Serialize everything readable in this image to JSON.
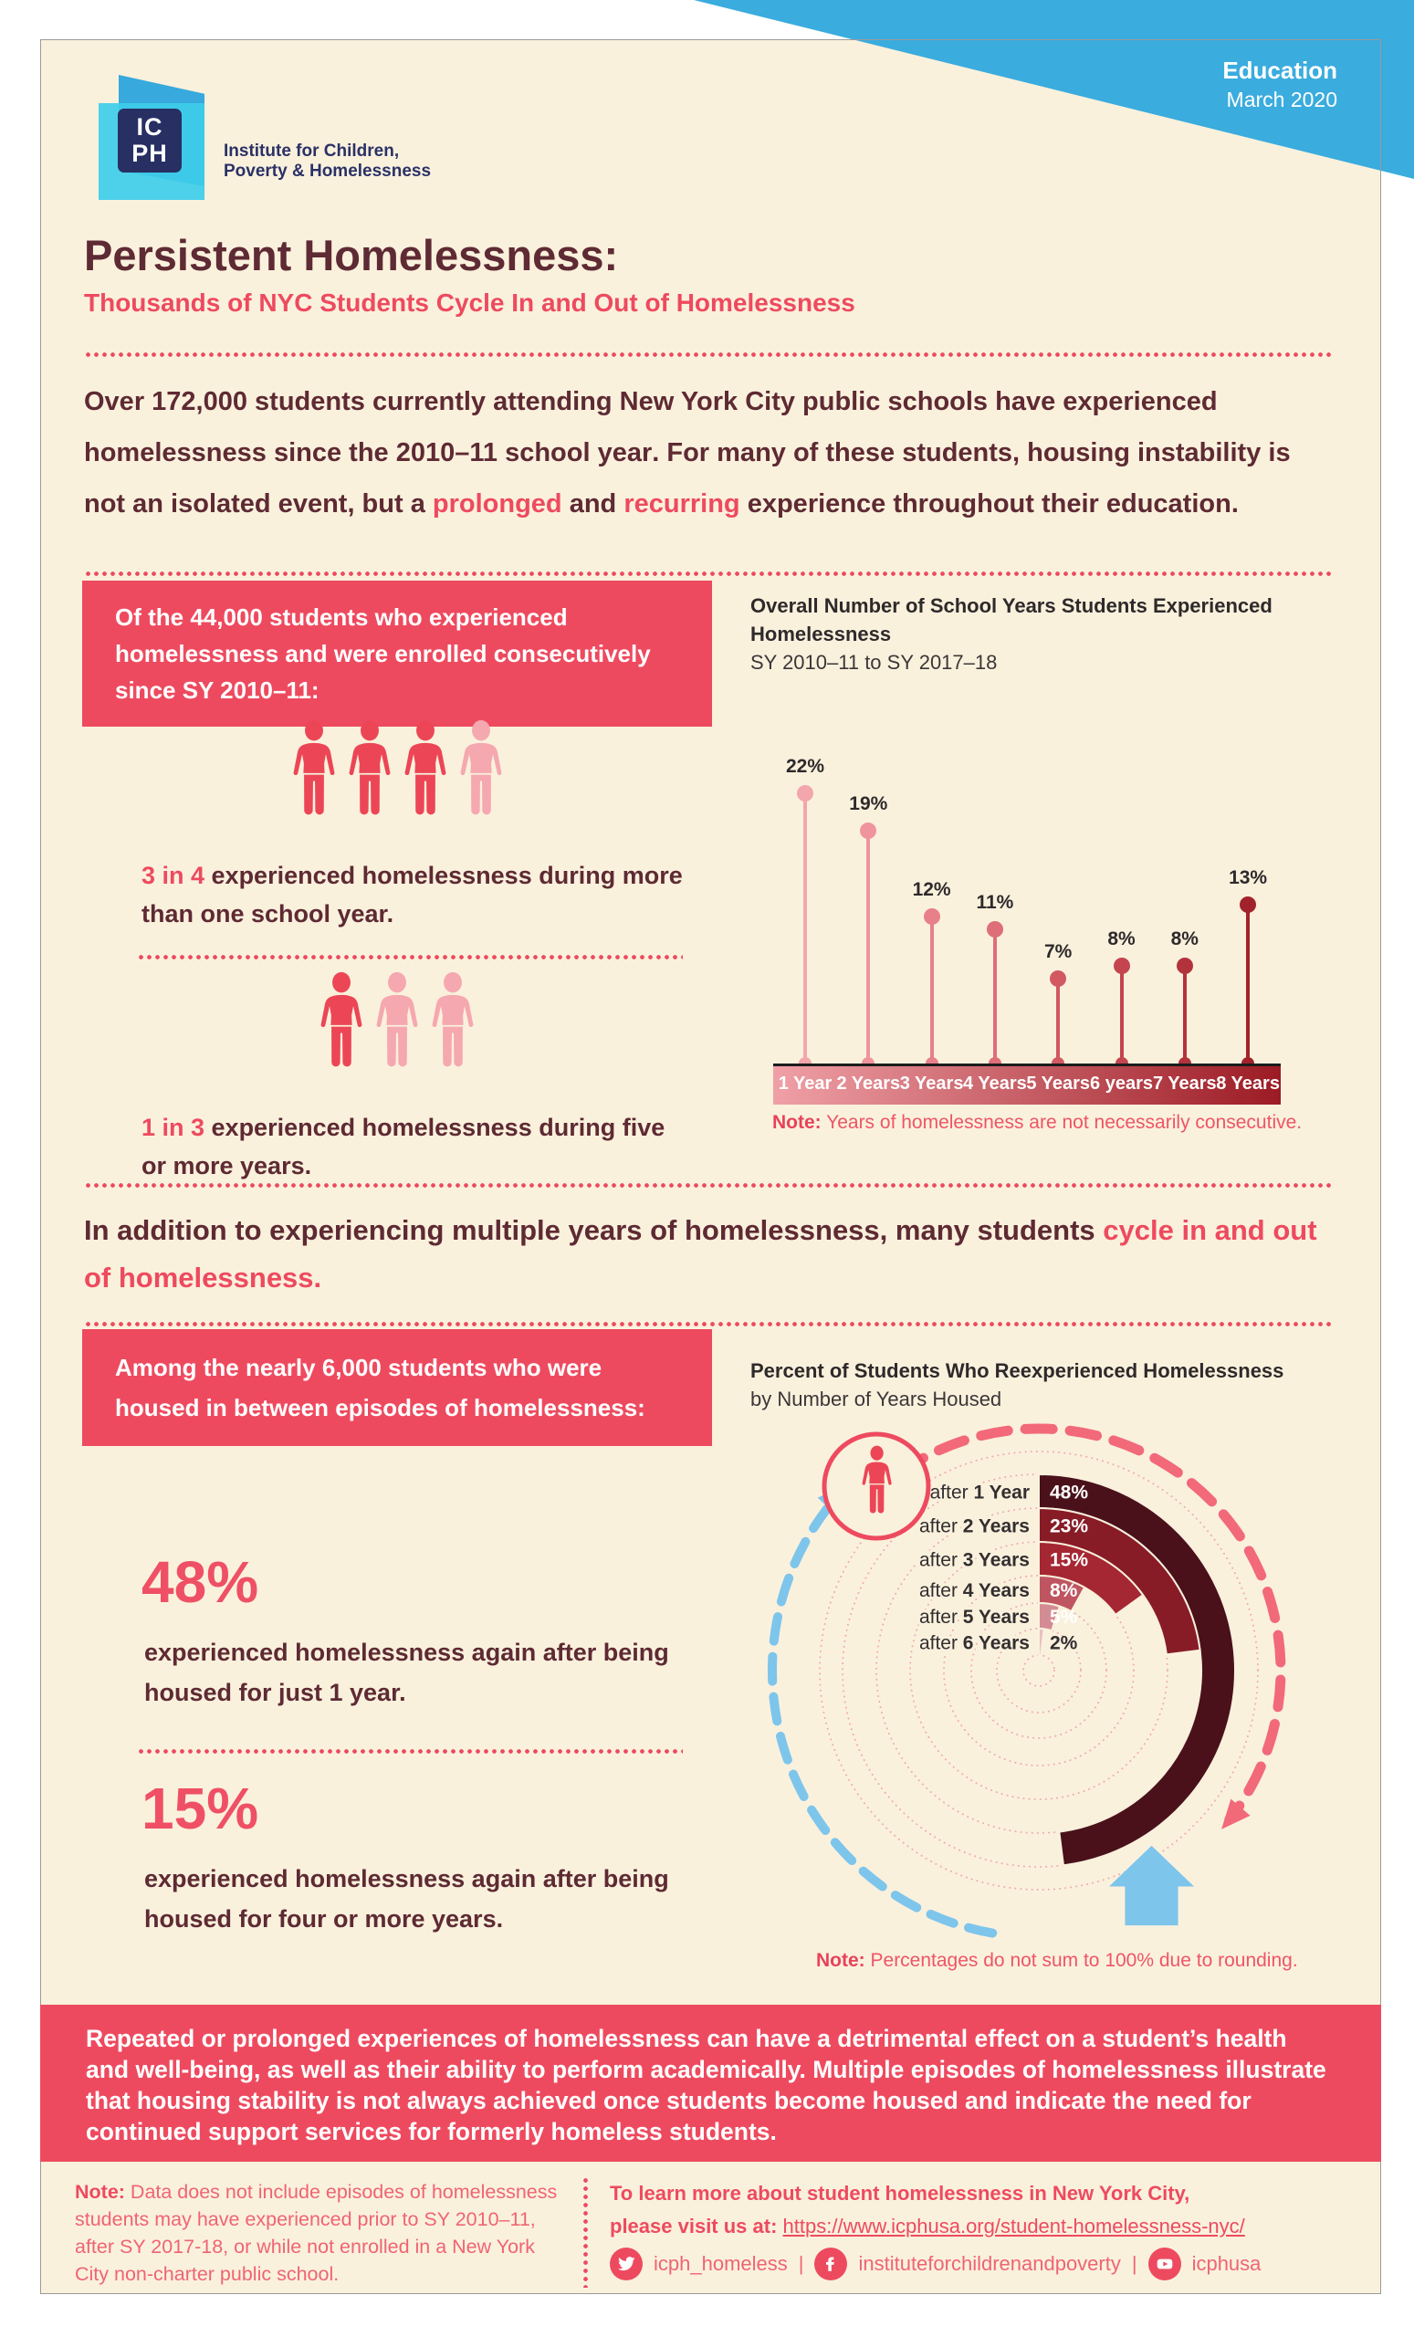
{
  "header": {
    "category": "Education",
    "date": "March 2020",
    "logo_acronym_line1": "IC",
    "logo_acronym_line2": "PH",
    "logo_name_line1": "Institute for Children,",
    "logo_name_line2": "Poverty & Homelessness"
  },
  "title": "Persistent Homelessness:",
  "subtitle": "Thousands of NYC Students Cycle In and Out of Homelessness",
  "intro_segments": [
    {
      "t": "Over 172,000 students",
      "c": "b"
    },
    {
      "t": " currently attending ",
      "c": ""
    },
    {
      "t": "New York City public schools",
      "c": "b"
    },
    {
      "t": " have experienced homelessness since the ",
      "c": ""
    },
    {
      "t": "2010–11 school year",
      "c": "b"
    },
    {
      "t": ". For many of these students, housing instability is not an isolated event, but a ",
      "c": ""
    },
    {
      "t": "prolonged",
      "c": "accent b"
    },
    {
      "t": " and ",
      "c": ""
    },
    {
      "t": "recurring",
      "c": "accent b"
    },
    {
      "t": " experience throughout their education.",
      "c": ""
    }
  ],
  "section1": {
    "box_text": "Of the 44,000 students who experienced homelessness and were enrolled consecutively since SY 2010–11:",
    "ratios": [
      {
        "accent": "3 in 4",
        "rest": " experienced homelessness during more than one school year.",
        "icons_total": 4,
        "icons_highlight": 3
      },
      {
        "accent": "1 in 3",
        "rest": " experienced homelessness during five or more years.",
        "icons_total": 3,
        "icons_highlight": 1
      }
    ]
  },
  "mid_heading_segments": [
    {
      "t": "In addition to experiencing multiple years of homelessness, many students ",
      "c": ""
    },
    {
      "t": "cycle in and out of homelessness.",
      "c": "accent"
    }
  ],
  "section2": {
    "box_text": "Among the nearly 6,000 students who were housed in between episodes of homelessness:",
    "stats": [
      {
        "value": "48%",
        "body": "experienced homelessness again after being housed for just 1 year."
      },
      {
        "value": "15%",
        "body": "experienced homelessness again after being housed for four or more years."
      }
    ]
  },
  "banner_text": "Repeated or prolonged experiences of homelessness can have a detrimental effect on a student’s health and well-being, as well as their ability to perform academically. Multiple episodes of homelessness illustrate that housing stability is not always achieved once students become housed and indicate the need for continued support services for formerly homeless students.",
  "footer": {
    "note_segments": [
      {
        "t": "Note: ",
        "c": "b"
      },
      {
        "t": "Data does not include episodes of homelessness students may have experienced prior to SY 2010–11, after SY 2017-18, or while not enrolled in a New York City non-charter public school.",
        "c": ""
      }
    ],
    "learn_line1": "To learn more about student homelessness in New York City,",
    "learn_line2_prefix": "please visit us at: ",
    "url": "https://www.icphusa.org/student-homelessness-nyc/",
    "social": [
      {
        "icon": "twitter-icon",
        "label": "icph_homeless"
      },
      {
        "icon": "facebook-icon",
        "label": "instituteforchildrenandpoverty"
      },
      {
        "icon": "youtube-icon",
        "label": "icphusa"
      }
    ],
    "social_separator": "|"
  },
  "colors": {
    "cream": "#FAF1DD",
    "pink": "#EE4A5F",
    "maroon": "#5E2A33",
    "banner_blue": "#3AACDE",
    "light_blue": "#7EC5EC",
    "person_solid": "#EC4656",
    "person_light": "#F5A8B0"
  },
  "chart_data": [
    {
      "type": "bar",
      "variant": "lollipop",
      "title": "Overall Number of School Years Students Experienced Homelessness",
      "subtitle": "SY 2010–11 to SY 2017–18",
      "categories": [
        "1 Year",
        "2 Years",
        "3 Years",
        "4 Years",
        "5 Years",
        "6 years",
        "7 Years",
        "8 Years"
      ],
      "values": [
        22,
        19,
        12,
        11,
        7,
        8,
        8,
        13
      ],
      "unit": "%",
      "ylim": [
        0,
        24
      ],
      "note_bold": "Note:",
      "note": " Years of homelessness are not necessarily consecutive.",
      "stem_colors": [
        "#F3A6AC",
        "#EF949C",
        "#E78089",
        "#DE6E78",
        "#D25862",
        "#C4454F",
        "#B3333D",
        "#A2222B"
      ],
      "axis_gradient": [
        "#EFA0A6",
        "#9C1B24"
      ],
      "legend": "none",
      "grid": false
    },
    {
      "type": "bar",
      "variant": "radial-progress",
      "title": "Percent of Students Who Reexperienced Homelessness",
      "subtitle": "by Number of Years Housed",
      "categories": [
        {
          "pre": "after ",
          "strong": "1 Year"
        },
        {
          "pre": "after ",
          "strong": "2 Years"
        },
        {
          "pre": "after ",
          "strong": "3 Years"
        },
        {
          "pre": "after ",
          "strong": "4 Years"
        },
        {
          "pre": "after ",
          "strong": "5 Years"
        },
        {
          "pre": "after ",
          "strong": "6 Years"
        }
      ],
      "values": [
        48,
        23,
        15,
        8,
        5,
        2
      ],
      "unit": "%",
      "full_circle_percent": 100,
      "ring_colors": [
        "#4A111B",
        "#871C27",
        "#A52733",
        "#BE5560",
        "#D38C93",
        "#E8BFC3"
      ],
      "note_bold": "Note:",
      "note": " Percentages do not sum to 100% due to rounding.",
      "legend": "none",
      "grid": "dotted-circles"
    }
  ]
}
